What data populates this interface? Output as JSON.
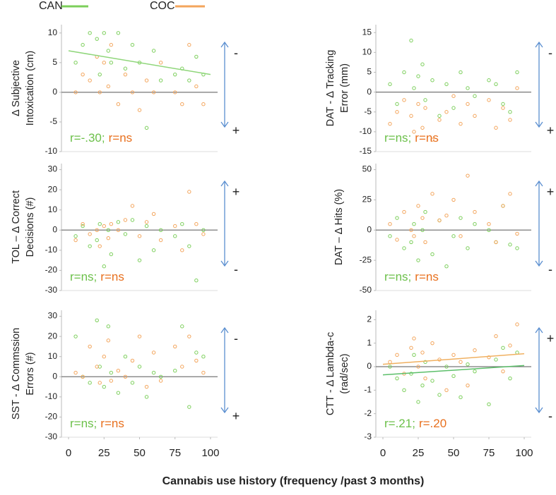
{
  "xlabel": "Cannabis use history  (frequency /past 3 months)",
  "chart_data": [
    {
      "type": "scatter",
      "ylabel": [
        "Δ  Subjective",
        "Intoxication (cm)"
      ],
      "xlim": [
        -5,
        105
      ],
      "ylim": [
        -10,
        11.4
      ],
      "yticks": [
        -10,
        -5,
        0,
        5,
        10
      ],
      "series": [
        {
          "name": "CAN",
          "color": "#7ccf5b",
          "x": [
            5,
            10,
            15,
            20,
            22,
            25,
            28,
            30,
            35,
            40,
            45,
            50,
            55,
            60,
            65,
            75,
            80,
            85,
            90,
            95
          ],
          "values": [
            5,
            8,
            10,
            9,
            3,
            10,
            7,
            5,
            10,
            4,
            8,
            5,
            -6,
            7,
            2,
            3,
            4,
            2,
            6,
            3
          ]
        },
        {
          "name": "COC",
          "color": "#f3a55c",
          "x": [
            5,
            10,
            15,
            20,
            22,
            25,
            28,
            30,
            35,
            40,
            45,
            50,
            55,
            60,
            65,
            75,
            80,
            85,
            90,
            95
          ],
          "values": [
            0,
            3,
            2,
            6,
            0,
            5,
            1,
            8,
            -2,
            3,
            0,
            -3,
            2,
            0,
            5,
            0,
            -2,
            8,
            1,
            -2
          ]
        }
      ],
      "trendlines": [
        {
          "color": "#8fd67a",
          "x": [
            0,
            100
          ],
          "y": [
            7,
            3
          ]
        }
      ],
      "annotations": [
        {
          "text": "r=-.30;",
          "color": "#6cc04a"
        },
        {
          "text": "r=ns",
          "color": "#e8701e"
        }
      ],
      "direction_labels": [
        "-",
        "+"
      ]
    },
    {
      "type": "scatter",
      "ylabel": [
        "DAT -  Δ Tracking",
        "Error (mm)"
      ],
      "xlim": [
        -5,
        105
      ],
      "ylim": [
        -15,
        17
      ],
      "yticks": [
        -15,
        -10,
        -5,
        0,
        5,
        10,
        15
      ],
      "series": [
        {
          "color": "#7ccf5b",
          "x": [
            5,
            10,
            15,
            20,
            22,
            25,
            28,
            30,
            35,
            40,
            45,
            50,
            55,
            60,
            65,
            75,
            80,
            85,
            90,
            95
          ],
          "values": [
            2,
            -3,
            5,
            13,
            1,
            4,
            7,
            -2,
            3,
            -6,
            2,
            -4,
            5,
            1,
            -1,
            3,
            2,
            -3,
            -5,
            5
          ]
        },
        {
          "color": "#f3a55c",
          "x": [
            5,
            10,
            15,
            20,
            22,
            25,
            28,
            30,
            35,
            40,
            45,
            50,
            55,
            60,
            65,
            75,
            80,
            85,
            90,
            95
          ],
          "values": [
            -8,
            -5,
            -2,
            -6,
            -10,
            -3,
            -9,
            -4,
            -12,
            -7,
            -5,
            -1,
            -8,
            -3,
            -6,
            -2,
            -9,
            -4,
            -7,
            1
          ]
        }
      ],
      "annotations": [
        {
          "text": "r=ns;",
          "color": "#6cc04a"
        },
        {
          "text": "r=ns",
          "color": "#e8701e"
        }
      ],
      "direction_labels": [
        "-",
        "+"
      ]
    },
    {
      "type": "scatter",
      "ylabel": [
        "TOL – Δ Correct",
        "Decisions  (#)"
      ],
      "xlim": [
        -5,
        105
      ],
      "ylim": [
        -30,
        33
      ],
      "yticks": [
        -30,
        -20,
        -10,
        0,
        10,
        20,
        30
      ],
      "series": [
        {
          "color": "#7ccf5b",
          "x": [
            5,
            10,
            15,
            20,
            22,
            25,
            28,
            30,
            35,
            40,
            45,
            50,
            55,
            60,
            65,
            75,
            80,
            85,
            90,
            95
          ],
          "values": [
            -3,
            2,
            -8,
            -5,
            3,
            -18,
            0,
            -12,
            4,
            -2,
            5,
            -15,
            2,
            -10,
            0,
            -3,
            3,
            -8,
            -25,
            0
          ]
        },
        {
          "color": "#f3a55c",
          "x": [
            5,
            10,
            15,
            20,
            22,
            25,
            28,
            30,
            35,
            40,
            45,
            50,
            55,
            60,
            65,
            75,
            80,
            85,
            90,
            95
          ],
          "values": [
            -5,
            3,
            -2,
            0,
            -8,
            2,
            -4,
            3,
            0,
            5,
            12,
            -3,
            4,
            8,
            -5,
            2,
            -10,
            19,
            3,
            -2
          ]
        }
      ],
      "annotations": [
        {
          "text": "r=ns;",
          "color": "#6cc04a"
        },
        {
          "text": "r=ns",
          "color": "#e8701e"
        }
      ],
      "direction_labels": [
        "+",
        "-"
      ]
    },
    {
      "type": "scatter",
      "ylabel": [
        "DAT –  Δ  Hits (%)"
      ],
      "xlim": [
        -5,
        105
      ],
      "ylim": [
        -50,
        55
      ],
      "yticks": [
        -50,
        -25,
        0,
        25,
        50
      ],
      "series": [
        {
          "color": "#7ccf5b",
          "x": [
            5,
            10,
            15,
            20,
            22,
            25,
            28,
            30,
            35,
            40,
            45,
            50,
            55,
            60,
            65,
            75,
            80,
            85,
            90,
            95
          ],
          "values": [
            -5,
            10,
            -15,
            -10,
            5,
            -25,
            0,
            15,
            -20,
            8,
            -30,
            -5,
            10,
            -15,
            5,
            0,
            -10,
            20,
            -12,
            -15
          ]
        },
        {
          "color": "#f3a55c",
          "x": [
            5,
            10,
            15,
            20,
            22,
            25,
            28,
            30,
            35,
            40,
            45,
            50,
            55,
            60,
            65,
            75,
            80,
            85,
            90,
            95
          ],
          "values": [
            5,
            -8,
            15,
            0,
            -5,
            20,
            10,
            -10,
            30,
            8,
            12,
            25,
            -5,
            45,
            15,
            5,
            -10,
            20,
            30,
            -3
          ]
        }
      ],
      "annotations": [
        {
          "text": "r=ns;",
          "color": "#6cc04a"
        },
        {
          "text": "r=ns",
          "color": "#e8701e"
        }
      ],
      "direction_labels": [
        "+",
        "-"
      ]
    },
    {
      "type": "scatter",
      "ylabel": [
        "SST - Δ Commssion",
        "Errors  (#)"
      ],
      "xlim": [
        -5,
        105
      ],
      "ylim": [
        -30,
        33
      ],
      "yticks": [
        -30,
        -20,
        -10,
        0,
        10,
        20,
        30
      ],
      "xticks": [
        0,
        25,
        50,
        75,
        100
      ],
      "series": [
        {
          "color": "#7ccf5b",
          "x": [
            5,
            10,
            15,
            20,
            22,
            25,
            28,
            30,
            35,
            40,
            45,
            50,
            55,
            60,
            65,
            75,
            80,
            85,
            90,
            95
          ],
          "values": [
            20,
            0,
            -3,
            28,
            5,
            -5,
            25,
            2,
            -8,
            10,
            -3,
            5,
            -10,
            2,
            0,
            3,
            25,
            -15,
            12,
            10
          ]
        },
        {
          "color": "#f3a55c",
          "x": [
            5,
            10,
            15,
            20,
            22,
            25,
            28,
            30,
            35,
            40,
            45,
            50,
            55,
            60,
            65,
            75,
            80,
            85,
            90,
            95
          ],
          "values": [
            2,
            0,
            15,
            5,
            -3,
            10,
            18,
            -2,
            3,
            0,
            8,
            20,
            -5,
            12,
            -2,
            15,
            5,
            20,
            8,
            2
          ]
        }
      ],
      "annotations": [
        {
          "text": "r=ns;",
          "color": "#6cc04a"
        },
        {
          "text": "r=ns",
          "color": "#e8701e"
        }
      ],
      "direction_labels": [
        "-",
        "+"
      ]
    },
    {
      "type": "scatter",
      "ylabel": [
        "CTT -  Δ Lambda-c",
        "(rad/sec)"
      ],
      "xlim": [
        -5,
        105
      ],
      "ylim": [
        -3,
        2.4
      ],
      "yticks": [
        -3,
        -2,
        -1,
        0,
        1,
        2
      ],
      "xticks": [
        0,
        25,
        50,
        75,
        100
      ],
      "series": [
        {
          "color": "#7ccf5b",
          "x": [
            5,
            10,
            15,
            20,
            22,
            25,
            28,
            30,
            35,
            40,
            45,
            50,
            55,
            60,
            65,
            75,
            80,
            85,
            90,
            95
          ],
          "values": [
            0,
            -0.5,
            -1,
            -0.3,
            0.5,
            -1.5,
            -0.8,
            0.2,
            -0.6,
            -1.2,
            0,
            -0.4,
            -1.3,
            0.1,
            -0.2,
            -1.6,
            0.3,
            0.8,
            -0.5,
            0.6
          ]
        },
        {
          "color": "#f3a55c",
          "x": [
            5,
            10,
            15,
            20,
            22,
            25,
            28,
            30,
            35,
            40,
            45,
            50,
            55,
            60,
            65,
            75,
            80,
            85,
            90,
            95
          ],
          "values": [
            0.2,
            0.5,
            -0.3,
            0.8,
            1.2,
            0,
            0.6,
            -0.5,
            1,
            0.3,
            -1,
            0.5,
            0.2,
            -0.8,
            0.7,
            0.4,
            1.3,
            -0.2,
            0.9,
            1.8
          ]
        }
      ],
      "trendlines": [
        {
          "color": "#5cbf6a",
          "x": [
            0,
            100
          ],
          "y": [
            -0.35,
            0.05
          ]
        },
        {
          "color": "#f0b060",
          "x": [
            0,
            100
          ],
          "y": [
            0.1,
            0.55
          ]
        }
      ],
      "annotations": [
        {
          "text": "r=.21;",
          "color": "#6cc04a"
        },
        {
          "text": "r=.20",
          "color": "#e8701e"
        }
      ],
      "direction_labels": [
        "+",
        "-"
      ]
    }
  ]
}
